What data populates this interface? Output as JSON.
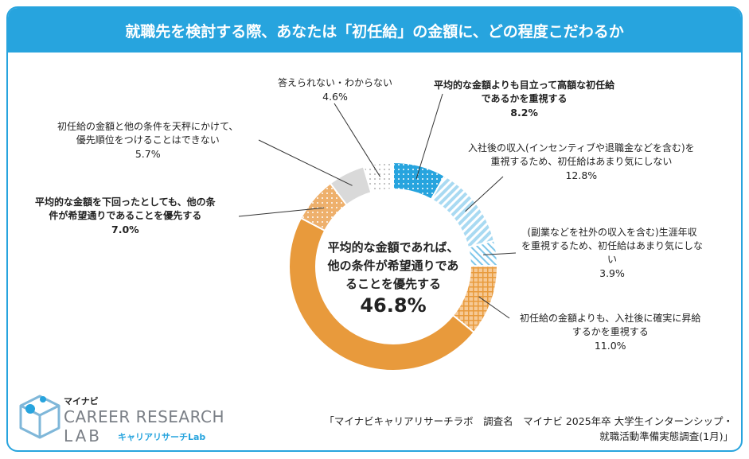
{
  "title": "就職先を検討する際、あなたは「初任給」の金額に、どの程度こだわるか",
  "chart_data": {
    "type": "pie",
    "title": "就職先を検討する際、あなたは「初任給」の金額に、どの程度こだわるか",
    "slices": [
      {
        "label": "平均的な金額よりも目立って高額な初任給であるかを重視する",
        "value": 8.2,
        "pct": "8.2%",
        "color": "#27a4de",
        "pattern": "dots"
      },
      {
        "label": "入社後の収入(インセンティブや退職金などを含む)を重視するため、初任給はあまり気にしない",
        "value": 12.8,
        "pct": "12.8%",
        "color": "#7fc7ea",
        "pattern": "diag"
      },
      {
        "label": "(副業などを社外の収入を含む)生涯年収を重視するため、初任給はあまり気にしない",
        "value": 3.9,
        "pct": "3.9%",
        "color": "#9ed4ef",
        "pattern": "hatch"
      },
      {
        "label": "初任給の金額よりも、入社後に確実に昇給するかを重視する",
        "value": 11.0,
        "pct": "11.0%",
        "color": "#f2b978",
        "pattern": "grid"
      },
      {
        "label": "平均的な金額であれば、他の条件が希望通りであることを優先する",
        "value": 46.8,
        "pct": "46.8%",
        "color": "#e89a3c",
        "pattern": "solid"
      },
      {
        "label": "平均的な金額を下回ったとしても、他の条件が希望通りであることを優先する",
        "value": 7.0,
        "pct": "7.0%",
        "color": "#eeb06c",
        "pattern": "dots"
      },
      {
        "label": "初任給の金額と他の条件を天秤にかけて、優先順位をつけることはできない",
        "value": 5.7,
        "pct": "5.7%",
        "color": "#d9d9d9",
        "pattern": "solid"
      },
      {
        "label": "答えられない・わからない",
        "value": 4.6,
        "pct": "4.6%",
        "color": "#e6e6e6",
        "pattern": "dots"
      }
    ]
  },
  "labels": {
    "l0": {
      "line1": "平均的な金額よりも目立って高額な初任給",
      "line2": "であるかを重視する",
      "pct": "8.2%"
    },
    "l1": {
      "line1": "入社後の収入(インセンティブや退職金などを含む)を",
      "line2": "重視するため、初任給はあまり気にしない",
      "pct": "12.8%"
    },
    "l2": {
      "line1": "(副業などを社外の収入を含む)生涯年収",
      "line2": "を重視するため、初任給はあまり気にしな",
      "line3": "い",
      "pct": "3.9%"
    },
    "l3": {
      "line1": "初任給の金額よりも、入社後に確実に昇給",
      "line2": "するかを重視する",
      "pct": "11.0%"
    },
    "l5": {
      "line1": "平均的な金額を下回ったとしても、他の条",
      "line2": "件が希望通りであることを優先する",
      "pct": "7.0%"
    },
    "l6": {
      "line1": "初任給の金額と他の条件を天秤にかけて、",
      "line2": "優先順位をつけることはできない",
      "pct": "5.7%"
    },
    "l7": {
      "line1": "答えられない・わからない",
      "pct": "4.6%"
    }
  },
  "center": {
    "line1": "平均的な金額であれば、",
    "line2": "他の条件が希望通りであ",
    "line3": "ることを優先する",
    "pct": "46.8%"
  },
  "logo": {
    "brand": "マイナビ",
    "line1": "CAREER RESEARCH",
    "line2": "LAB",
    "sub": "キャリアリサーチLab"
  },
  "source": {
    "line1": "「マイナビキャリアリサーチラボ　調査名　マイナビ 2025年卒 大学生インターンシップ・",
    "line2": "就職活動準備実態調査(1月)」"
  }
}
